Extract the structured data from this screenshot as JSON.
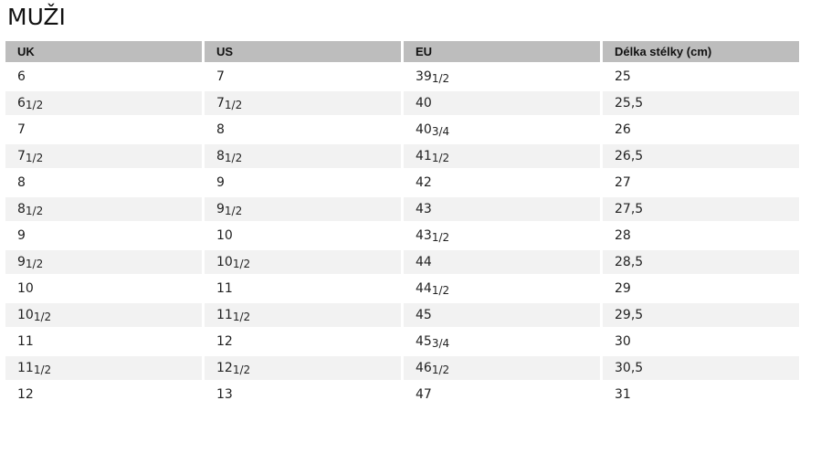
{
  "title": "MUŽI",
  "headers": [
    "UK",
    "US",
    "EU",
    "Délka stélky (cm)"
  ],
  "rows": [
    [
      [
        "6",
        ""
      ],
      [
        "7",
        ""
      ],
      [
        "39",
        "1/2"
      ],
      [
        "25",
        ""
      ]
    ],
    [
      [
        "6",
        "1/2"
      ],
      [
        "7",
        "1/2"
      ],
      [
        "40",
        ""
      ],
      [
        "25,5",
        ""
      ]
    ],
    [
      [
        "7",
        ""
      ],
      [
        "8",
        ""
      ],
      [
        "40",
        "3/4"
      ],
      [
        "26",
        ""
      ]
    ],
    [
      [
        "7",
        "1/2"
      ],
      [
        "8",
        "1/2"
      ],
      [
        "41",
        "1/2"
      ],
      [
        "26,5",
        ""
      ]
    ],
    [
      [
        "8",
        ""
      ],
      [
        "9",
        ""
      ],
      [
        "42",
        ""
      ],
      [
        "27",
        ""
      ]
    ],
    [
      [
        "8",
        "1/2"
      ],
      [
        "9",
        "1/2"
      ],
      [
        "43",
        ""
      ],
      [
        "27,5",
        ""
      ]
    ],
    [
      [
        "9",
        ""
      ],
      [
        "10",
        ""
      ],
      [
        "43",
        "1/2"
      ],
      [
        "28",
        ""
      ]
    ],
    [
      [
        "9",
        "1/2"
      ],
      [
        "10",
        "1/2"
      ],
      [
        "44",
        ""
      ],
      [
        "28,5",
        ""
      ]
    ],
    [
      [
        "10",
        ""
      ],
      [
        "11",
        ""
      ],
      [
        "44",
        "1/2"
      ],
      [
        "29",
        ""
      ]
    ],
    [
      [
        "10",
        "1/2"
      ],
      [
        "11",
        "1/2"
      ],
      [
        "45",
        ""
      ],
      [
        "29,5",
        ""
      ]
    ],
    [
      [
        "11",
        ""
      ],
      [
        "12",
        ""
      ],
      [
        "45",
        "3/4"
      ],
      [
        "30",
        ""
      ]
    ],
    [
      [
        "11",
        "1/2"
      ],
      [
        "12",
        "1/2"
      ],
      [
        "46",
        "1/2"
      ],
      [
        "30,5",
        ""
      ]
    ],
    [
      [
        "12",
        ""
      ],
      [
        "13",
        ""
      ],
      [
        "47",
        ""
      ],
      [
        "31",
        ""
      ]
    ]
  ]
}
